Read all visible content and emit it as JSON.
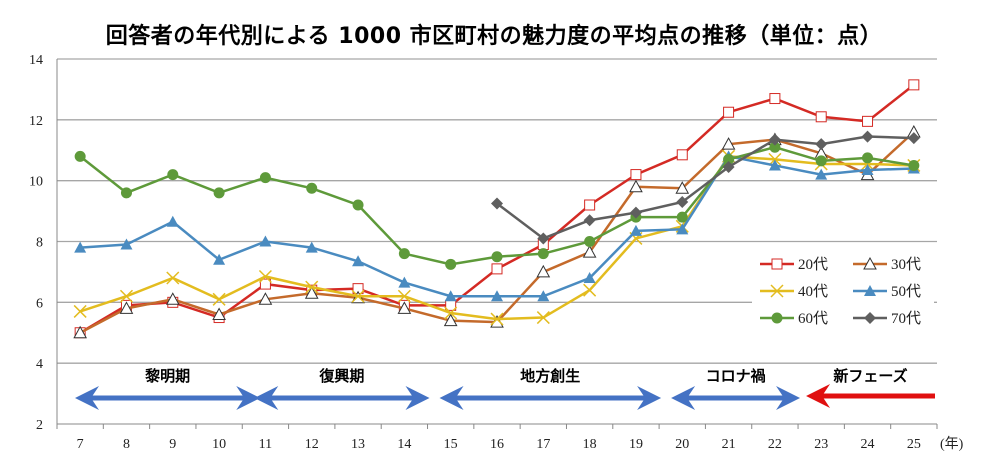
{
  "chart_data": {
    "type": "line",
    "title": "回答者の年代別による 1000 市区町村の魅力度の平均点の推移（単位：点）",
    "xlabel": "(年)",
    "ylabel": "",
    "x": [
      "7",
      "8",
      "9",
      "10",
      "11",
      "12",
      "13",
      "14",
      "15",
      "16",
      "17",
      "18",
      "19",
      "20",
      "21",
      "22",
      "23",
      "24",
      "25"
    ],
    "ylim": [
      2,
      14
    ],
    "yticks": [
      "2",
      "4",
      "6",
      "8",
      "10",
      "12",
      "14"
    ],
    "grid": true,
    "legend_position": "right",
    "series": [
      {
        "name": "20代",
        "color": "#d42a24",
        "marker": "square-open",
        "values": [
          5.0,
          5.9,
          6.0,
          5.5,
          6.6,
          6.4,
          6.45,
          5.9,
          5.9,
          7.1,
          7.9,
          9.2,
          10.2,
          10.85,
          12.25,
          12.7,
          12.1,
          11.95,
          13.15
        ]
      },
      {
        "name": "30代",
        "color": "#c46a2b",
        "marker": "triangle-open",
        "values": [
          5.0,
          5.8,
          6.1,
          5.6,
          6.1,
          6.3,
          6.15,
          5.8,
          5.4,
          5.35,
          7.0,
          7.65,
          9.8,
          9.75,
          11.2,
          11.35,
          10.9,
          10.2,
          11.6
        ]
      },
      {
        "name": "40代",
        "color": "#e3bc1f",
        "marker": "x",
        "values": [
          5.7,
          6.2,
          6.8,
          6.1,
          6.85,
          6.5,
          6.2,
          6.2,
          5.65,
          5.45,
          5.5,
          6.4,
          8.1,
          8.5,
          10.8,
          10.7,
          10.55,
          10.55,
          10.5
        ]
      },
      {
        "name": "50代",
        "color": "#4a8bc0",
        "marker": "triangle",
        "values": [
          7.8,
          7.9,
          8.65,
          7.4,
          8.0,
          7.8,
          7.35,
          6.65,
          6.2,
          6.2,
          6.2,
          6.8,
          8.35,
          8.4,
          10.8,
          10.5,
          10.2,
          10.35,
          10.4
        ]
      },
      {
        "name": "60代",
        "color": "#5e9a3a",
        "marker": "circle",
        "values": [
          10.8,
          9.6,
          10.2,
          9.6,
          10.1,
          9.75,
          9.2,
          7.6,
          7.25,
          7.5,
          7.6,
          8.0,
          8.8,
          8.8,
          10.7,
          11.1,
          10.65,
          10.75,
          10.5
        ]
      },
      {
        "name": "70代",
        "color": "#5f5f5f",
        "marker": "diamond",
        "values": [
          null,
          null,
          null,
          null,
          null,
          null,
          null,
          null,
          null,
          9.25,
          8.1,
          8.7,
          8.95,
          9.3,
          10.45,
          11.35,
          11.2,
          11.45,
          11.4
        ]
      }
    ],
    "annotations": [
      {
        "label": "黎明期",
        "from": "7",
        "to": "11",
        "arrow": "both",
        "color": "#4472c4"
      },
      {
        "label": "復興期",
        "from": "11",
        "to": "15",
        "arrow": "both",
        "color": "#4472c4"
      },
      {
        "label": "地方創生",
        "from": "15",
        "to": "20",
        "arrow": "both",
        "color": "#4472c4"
      },
      {
        "label": "コロナ禍",
        "from": "20",
        "to": "23",
        "arrow": "both",
        "color": "#4472c4"
      },
      {
        "label": "新フェーズ",
        "from": "23",
        "to": "25",
        "arrow": "left",
        "color": "#e01010"
      }
    ]
  }
}
